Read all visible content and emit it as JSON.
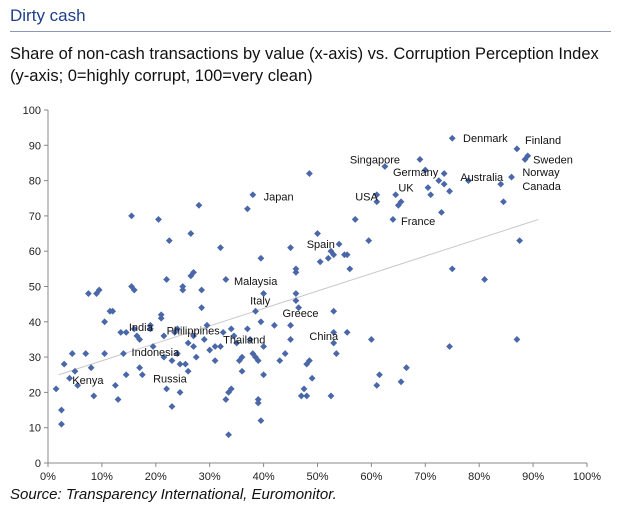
{
  "header": {
    "title": "Dirty cash",
    "subtitle": "Share of non-cash transactions by value (x-axis) vs. Corruption Perception Index (y-axis; 0=highly corrupt, 100=very clean)"
  },
  "footer": {
    "source": "Source: Transparency International, Euromonitor."
  },
  "colors": {
    "marker": "#4a67a8",
    "trendline": "#c8c8c8",
    "axis": "#888888"
  },
  "chart_data": {
    "type": "scatter",
    "title": "Share of non-cash transactions by value (x-axis) vs. Corruption Perception Index (y-axis; 0=highly corrupt, 100=very clean)",
    "xlabel": "",
    "ylabel": "",
    "xlim": [
      0,
      100
    ],
    "ylim": [
      0,
      100
    ],
    "x_ticks": [
      "0%",
      "10%",
      "20%",
      "30%",
      "40%",
      "50%",
      "60%",
      "70%",
      "80%",
      "90%",
      "100%"
    ],
    "y_ticks": [
      "0",
      "10",
      "20",
      "30",
      "40",
      "50",
      "60",
      "70",
      "80",
      "90",
      "100"
    ],
    "grid": false,
    "legend": "none",
    "trendline": {
      "x": [
        2,
        91
      ],
      "y": [
        25,
        69
      ]
    },
    "points": [
      {
        "x": 1.5,
        "y": 21
      },
      {
        "x": 2.5,
        "y": 11
      },
      {
        "x": 2.5,
        "y": 15
      },
      {
        "x": 3,
        "y": 28
      },
      {
        "x": 4,
        "y": 24
      },
      {
        "x": 4.5,
        "y": 31
      },
      {
        "x": 5,
        "y": 26
      },
      {
        "x": 5.5,
        "y": 22
      },
      {
        "x": 7,
        "y": 31
      },
      {
        "x": 7.5,
        "y": 48
      },
      {
        "x": 8,
        "y": 27
      },
      {
        "x": 8.5,
        "y": 19
      },
      {
        "x": 9,
        "y": 48
      },
      {
        "x": 9.5,
        "y": 49
      },
      {
        "x": 10.5,
        "y": 40
      },
      {
        "x": 10.5,
        "y": 31
      },
      {
        "x": 11.5,
        "y": 43
      },
      {
        "x": 12,
        "y": 43
      },
      {
        "x": 12.5,
        "y": 22
      },
      {
        "x": 13,
        "y": 18
      },
      {
        "x": 13.5,
        "y": 37
      },
      {
        "x": 14,
        "y": 31
      },
      {
        "x": 14.5,
        "y": 25
      },
      {
        "x": 14.5,
        "y": 37
      },
      {
        "x": 15.5,
        "y": 50
      },
      {
        "x": 15.5,
        "y": 70
      },
      {
        "x": 16,
        "y": 49
      },
      {
        "x": 16,
        "y": 38
      },
      {
        "x": 16.5,
        "y": 36
      },
      {
        "x": 17,
        "y": 35
      },
      {
        "x": 17,
        "y": 27
      },
      {
        "x": 17.5,
        "y": 25
      },
      {
        "x": 19,
        "y": 38
      },
      {
        "x": 19,
        "y": 39
      },
      {
        "x": 19.5,
        "y": 33
      },
      {
        "x": 20.5,
        "y": 69
      },
      {
        "x": 21,
        "y": 41
      },
      {
        "x": 21,
        "y": 42
      },
      {
        "x": 21.5,
        "y": 36
      },
      {
        "x": 21.5,
        "y": 30
      },
      {
        "x": 22,
        "y": 52
      },
      {
        "x": 22,
        "y": 21
      },
      {
        "x": 22.5,
        "y": 63
      },
      {
        "x": 23,
        "y": 16
      },
      {
        "x": 23,
        "y": 29
      },
      {
        "x": 23.5,
        "y": 37
      },
      {
        "x": 24,
        "y": 38
      },
      {
        "x": 24,
        "y": 31
      },
      {
        "x": 24.5,
        "y": 20
      },
      {
        "x": 24.5,
        "y": 28
      },
      {
        "x": 25,
        "y": 50
      },
      {
        "x": 25,
        "y": 49
      },
      {
        "x": 25.5,
        "y": 28
      },
      {
        "x": 26,
        "y": 34
      },
      {
        "x": 26,
        "y": 26
      },
      {
        "x": 26.5,
        "y": 53
      },
      {
        "x": 26.5,
        "y": 65
      },
      {
        "x": 27,
        "y": 54
      },
      {
        "x": 27,
        "y": 33
      },
      {
        "x": 27,
        "y": 36
      },
      {
        "x": 27.5,
        "y": 30
      },
      {
        "x": 28,
        "y": 73
      },
      {
        "x": 28.5,
        "y": 49
      },
      {
        "x": 28.5,
        "y": 44
      },
      {
        "x": 29,
        "y": 35
      },
      {
        "x": 29.5,
        "y": 39
      },
      {
        "x": 30,
        "y": 32
      },
      {
        "x": 31,
        "y": 33
      },
      {
        "x": 31,
        "y": 29
      },
      {
        "x": 32,
        "y": 61
      },
      {
        "x": 32,
        "y": 33
      },
      {
        "x": 32.5,
        "y": 37
      },
      {
        "x": 33,
        "y": 18
      },
      {
        "x": 33,
        "y": 52
      },
      {
        "x": 33.5,
        "y": 8
      },
      {
        "x": 33.5,
        "y": 20
      },
      {
        "x": 34,
        "y": 38
      },
      {
        "x": 34,
        "y": 21
      },
      {
        "x": 34.5,
        "y": 36
      },
      {
        "x": 35,
        "y": 34
      },
      {
        "x": 35.5,
        "y": 29
      },
      {
        "x": 36,
        "y": 26
      },
      {
        "x": 36,
        "y": 30
      },
      {
        "x": 37,
        "y": 72
      },
      {
        "x": 37,
        "y": 38
      },
      {
        "x": 37.5,
        "y": 35
      },
      {
        "x": 38,
        "y": 76
      },
      {
        "x": 38,
        "y": 31
      },
      {
        "x": 38.5,
        "y": 43
      },
      {
        "x": 38.5,
        "y": 30
      },
      {
        "x": 39,
        "y": 29
      },
      {
        "x": 39,
        "y": 18
      },
      {
        "x": 39,
        "y": 17
      },
      {
        "x": 39.5,
        "y": 12
      },
      {
        "x": 39.5,
        "y": 40
      },
      {
        "x": 39.5,
        "y": 58
      },
      {
        "x": 40,
        "y": 48
      },
      {
        "x": 40,
        "y": 33
      },
      {
        "x": 40,
        "y": 25
      },
      {
        "x": 42,
        "y": 39
      },
      {
        "x": 43,
        "y": 29
      },
      {
        "x": 44,
        "y": 31
      },
      {
        "x": 45,
        "y": 61
      },
      {
        "x": 45,
        "y": 35
      },
      {
        "x": 45,
        "y": 39
      },
      {
        "x": 46,
        "y": 48
      },
      {
        "x": 46,
        "y": 55
      },
      {
        "x": 46,
        "y": 54
      },
      {
        "x": 46,
        "y": 46
      },
      {
        "x": 46.5,
        "y": 44
      },
      {
        "x": 47,
        "y": 19
      },
      {
        "x": 47.5,
        "y": 21
      },
      {
        "x": 48,
        "y": 19
      },
      {
        "x": 48,
        "y": 28
      },
      {
        "x": 48.5,
        "y": 29
      },
      {
        "x": 48.5,
        "y": 82
      },
      {
        "x": 49,
        "y": 24
      },
      {
        "x": 50,
        "y": 65
      },
      {
        "x": 50.5,
        "y": 57
      },
      {
        "x": 52,
        "y": 58
      },
      {
        "x": 52.5,
        "y": 60
      },
      {
        "x": 52.5,
        "y": 19
      },
      {
        "x": 53,
        "y": 59
      },
      {
        "x": 53,
        "y": 43
      },
      {
        "x": 53,
        "y": 37
      },
      {
        "x": 53,
        "y": 34
      },
      {
        "x": 53.5,
        "y": 31
      },
      {
        "x": 54,
        "y": 62
      },
      {
        "x": 55,
        "y": 59
      },
      {
        "x": 55.5,
        "y": 59
      },
      {
        "x": 55.5,
        "y": 37
      },
      {
        "x": 56,
        "y": 55
      },
      {
        "x": 57,
        "y": 69
      },
      {
        "x": 59.5,
        "y": 63
      },
      {
        "x": 60,
        "y": 35
      },
      {
        "x": 61,
        "y": 76
      },
      {
        "x": 61,
        "y": 74
      },
      {
        "x": 61,
        "y": 22
      },
      {
        "x": 61.5,
        "y": 25
      },
      {
        "x": 62.5,
        "y": 84
      },
      {
        "x": 64,
        "y": 69
      },
      {
        "x": 64.5,
        "y": 76
      },
      {
        "x": 65,
        "y": 73
      },
      {
        "x": 65.5,
        "y": 74
      },
      {
        "x": 65.5,
        "y": 23
      },
      {
        "x": 66.5,
        "y": 27
      },
      {
        "x": 69,
        "y": 86
      },
      {
        "x": 70,
        "y": 83
      },
      {
        "x": 70.5,
        "y": 78
      },
      {
        "x": 71,
        "y": 76
      },
      {
        "x": 72.5,
        "y": 80
      },
      {
        "x": 73,
        "y": 71
      },
      {
        "x": 73.5,
        "y": 82
      },
      {
        "x": 73.5,
        "y": 79
      },
      {
        "x": 74.5,
        "y": 77
      },
      {
        "x": 74.5,
        "y": 33
      },
      {
        "x": 75,
        "y": 55
      },
      {
        "x": 75,
        "y": 92
      },
      {
        "x": 78,
        "y": 80
      },
      {
        "x": 81,
        "y": 52
      },
      {
        "x": 84,
        "y": 79
      },
      {
        "x": 84.5,
        "y": 74
      },
      {
        "x": 86,
        "y": 81
      },
      {
        "x": 87,
        "y": 89
      },
      {
        "x": 87,
        "y": 35
      },
      {
        "x": 87.5,
        "y": 63
      },
      {
        "x": 88.5,
        "y": 86
      },
      {
        "x": 89,
        "y": 87
      }
    ],
    "annotations": [
      {
        "text": "Denmark",
        "x": 77,
        "y": 92
      },
      {
        "text": "Finland",
        "x": 88.5,
        "y": 91.5
      },
      {
        "text": "Sweden",
        "x": 90,
        "y": 86
      },
      {
        "text": "Norway",
        "x": 88,
        "y": 82.5
      },
      {
        "text": "Canada",
        "x": 88,
        "y": 78.5
      },
      {
        "text": "Australia",
        "x": 76.5,
        "y": 81
      },
      {
        "text": "Germany",
        "x": 64,
        "y": 82.5
      },
      {
        "text": "Singapore",
        "x": 56,
        "y": 86
      },
      {
        "text": "UK",
        "x": 65,
        "y": 78
      },
      {
        "text": "USA",
        "x": 57,
        "y": 75.5
      },
      {
        "text": "France",
        "x": 65.5,
        "y": 68.5
      },
      {
        "text": "Japan",
        "x": 40,
        "y": 75.5
      },
      {
        "text": "Spain",
        "x": 48,
        "y": 62
      },
      {
        "text": "Malaysia",
        "x": 34.5,
        "y": 51.5
      },
      {
        "text": "Italy",
        "x": 37.5,
        "y": 46
      },
      {
        "text": "Greece",
        "x": 43.5,
        "y": 42.5
      },
      {
        "text": "China",
        "x": 48.5,
        "y": 36
      },
      {
        "text": "India",
        "x": 15,
        "y": 38.5
      },
      {
        "text": "Philippines",
        "x": 22,
        "y": 37.5
      },
      {
        "text": "Thailand",
        "x": 32.5,
        "y": 35
      },
      {
        "text": "Indonesia",
        "x": 15.5,
        "y": 31.5
      },
      {
        "text": "Russia",
        "x": 19.5,
        "y": 24
      },
      {
        "text": "Kenya",
        "x": 4.5,
        "y": 23.5
      }
    ]
  }
}
